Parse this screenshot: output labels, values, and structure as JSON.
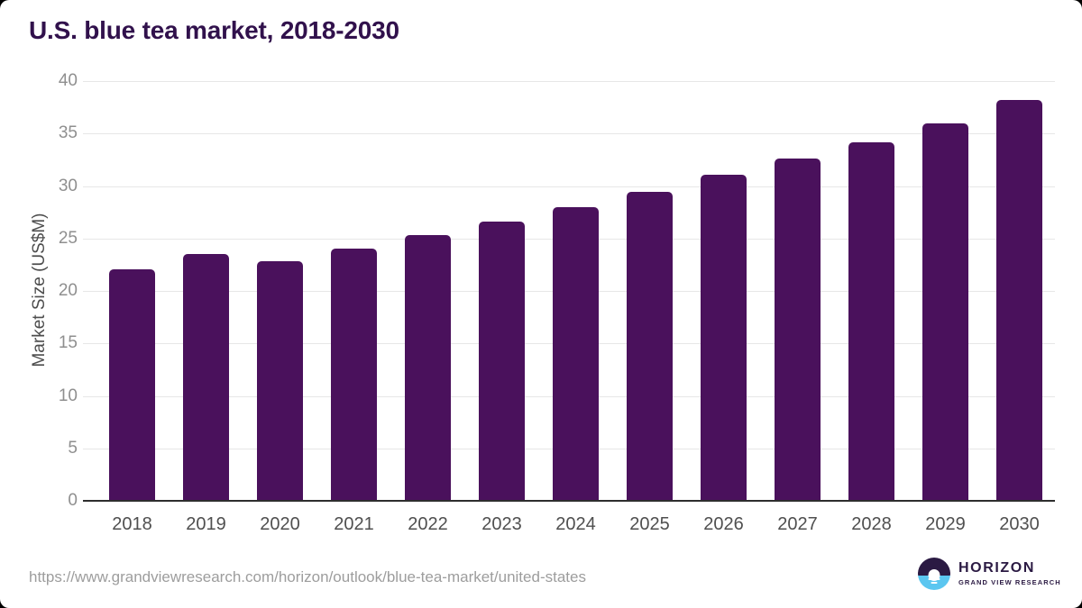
{
  "title": "U.S. blue tea market, 2018-2030",
  "chart_data": {
    "type": "bar",
    "title": "U.S. blue tea market, 2018-2030",
    "categories": [
      "2018",
      "2019",
      "2020",
      "2021",
      "2022",
      "2023",
      "2024",
      "2025",
      "2026",
      "2027",
      "2028",
      "2029",
      "2030"
    ],
    "values": [
      22.1,
      23.5,
      22.8,
      24.0,
      25.3,
      26.6,
      28.0,
      29.4,
      31.1,
      32.6,
      34.2,
      36.0,
      38.2
    ],
    "xlabel": "",
    "ylabel": "Market Size (US$M)",
    "ylim": [
      0,
      40
    ],
    "yticks": [
      0,
      5,
      10,
      15,
      20,
      25,
      30,
      35,
      40
    ],
    "grid": "horizontal",
    "legend": "none",
    "bar_color": "#4A115C"
  },
  "footer": {
    "source_url": "https://www.grandviewresearch.com/horizon/outlook/blue-tea-market/united-states",
    "logo": {
      "name": "HORIZON",
      "subtitle": "GRAND VIEW RESEARCH",
      "dark_color": "#2B1A43",
      "light_color": "#5BC6F0"
    }
  },
  "colors": {
    "title_text": "#31114C",
    "axis_line": "#2e2e2e",
    "gridline": "#e7e7e7",
    "ytick_text": "#8f8f8f",
    "xtick_text": "#4f4f4f",
    "background": "#ffffff"
  }
}
